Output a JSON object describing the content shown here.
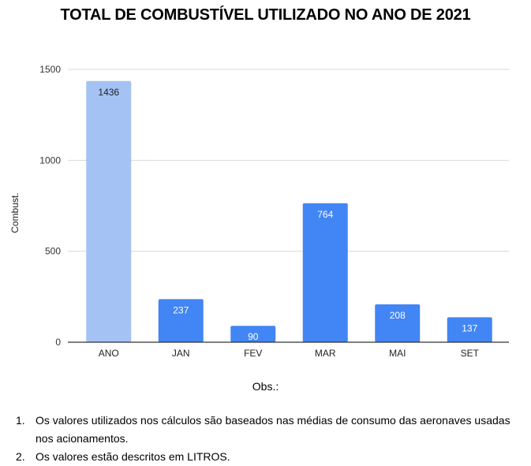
{
  "title": "TOTAL DE COMBUSTÍVEL UTILIZADO NO ANO DE 2021",
  "chart_data": {
    "type": "bar",
    "title": "TOTAL DE COMBUSTÍVEL UTILIZADO NO ANO DE 2021",
    "xlabel": "",
    "ylabel": "Combust.",
    "categories": [
      "ANO",
      "JAN",
      "FEV",
      "MAR",
      "MAI",
      "SET"
    ],
    "values": [
      1436,
      237,
      90,
      764,
      208,
      137
    ],
    "data_labels": [
      "1436",
      "237",
      "90",
      "764",
      "208",
      "137"
    ],
    "ylim": [
      0,
      1500
    ],
    "yticks": [
      0,
      500,
      1000,
      1500
    ],
    "grid": true,
    "legend": "none",
    "colors": {
      "highlight_bar": "#a4c2f4",
      "bar": "#4285f4",
      "highlight_label": "#202124",
      "bar_label": "#ffffff",
      "grid": "#d9d9d9",
      "axis": "#333333"
    }
  },
  "footer": {
    "obs_label": "Obs.:",
    "notes": [
      {
        "num": "1.",
        "text": "Os valores utilizados nos cálculos são baseados nas médias de consumo das aeronaves usadas nos acionamentos."
      },
      {
        "num": "2.",
        "text": "Os valores estão descritos em LITROS."
      }
    ]
  }
}
